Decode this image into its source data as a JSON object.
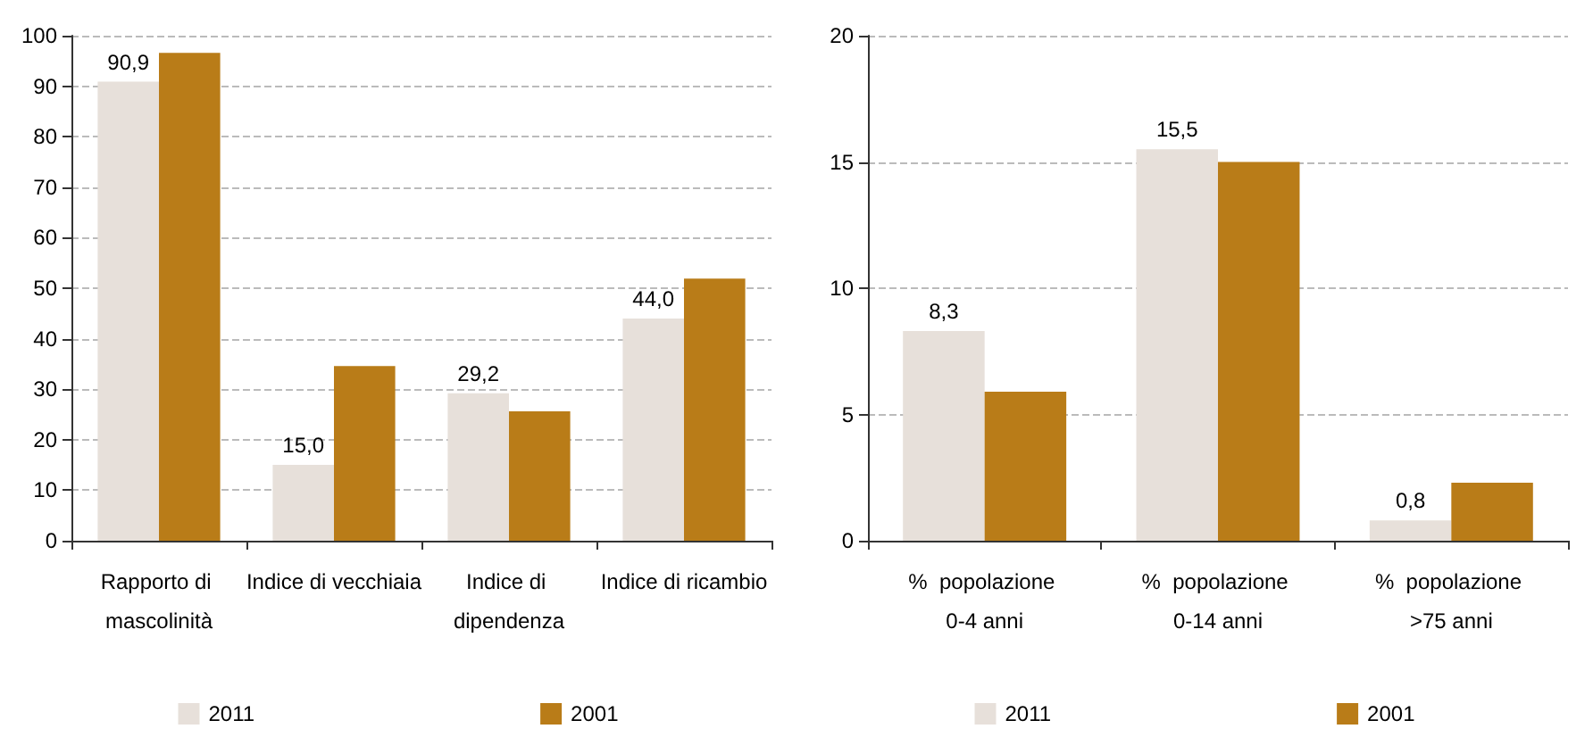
{
  "chart_data": [
    {
      "type": "bar",
      "categories": [
        "Rapporto di mascolinità",
        "Indice di vecchiaia",
        "Indice di dipendenza",
        "Indice di ricambio"
      ],
      "series": [
        {
          "name": "2011",
          "color": "#e7e0da",
          "values": [
            90.9,
            15.0,
            29.2,
            44.0
          ],
          "value_labels": [
            "90,9",
            "15,0",
            "29,2",
            "44,0"
          ]
        },
        {
          "name": "2001",
          "color": "#b97c18",
          "values": [
            96.6,
            34.6,
            25.6,
            51.9
          ]
        }
      ],
      "ylim": [
        0,
        100
      ],
      "yticks": [
        0,
        10,
        20,
        30,
        40,
        50,
        60,
        70,
        80,
        90,
        100
      ],
      "grid": "y",
      "legend": "bottom"
    },
    {
      "type": "bar",
      "categories": [
        "%  popolazione 0-4 anni",
        "%  popolazione 0-14 anni",
        "%  popolazione >75 anni"
      ],
      "series": [
        {
          "name": "2011",
          "color": "#e7e0da",
          "values": [
            8.3,
            15.5,
            0.8
          ],
          "value_labels": [
            "8,3",
            "15,5",
            "0,8"
          ]
        },
        {
          "name": "2001",
          "color": "#b97c18",
          "values": [
            5.9,
            15.0,
            2.3
          ]
        }
      ],
      "ylim": [
        0,
        20
      ],
      "yticks": [
        0,
        5,
        10,
        15,
        20
      ],
      "grid": "y",
      "legend": "bottom"
    }
  ]
}
